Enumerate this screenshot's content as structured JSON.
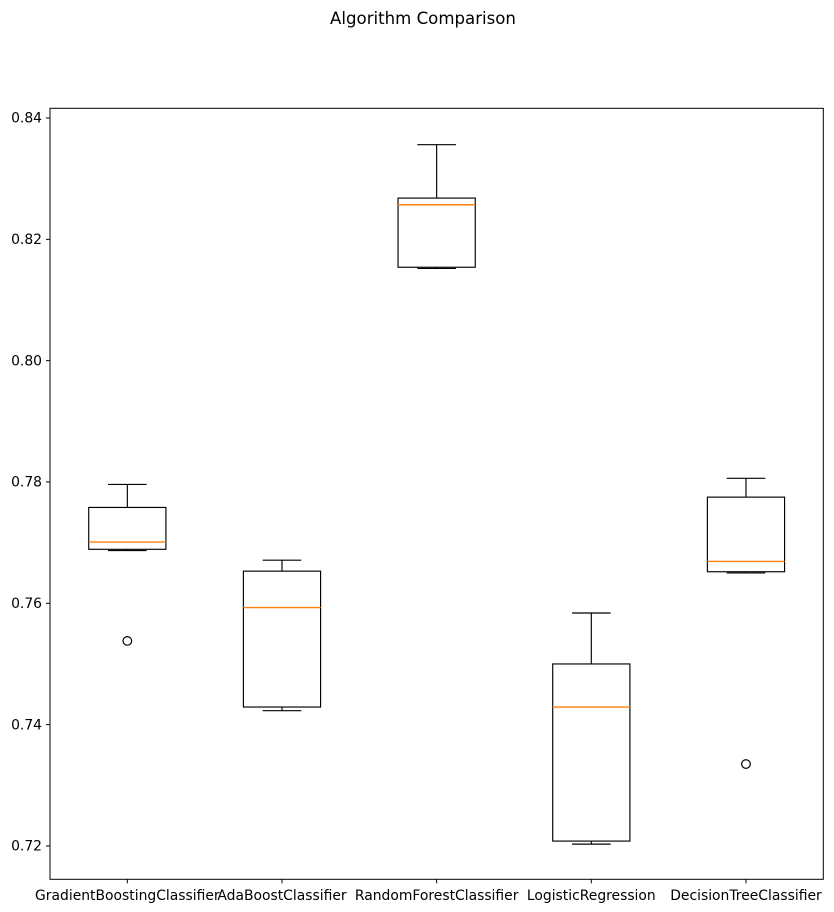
{
  "chart_data": {
    "type": "boxplot",
    "title": "Algorithm Comparison",
    "categories": [
      "GradientBoostingClassifier",
      "AdaBoostClassifier",
      "RandomForestClassifier",
      "LogisticRegression",
      "DecisionTreeClassifier"
    ],
    "series": [
      {
        "name": "GradientBoostingClassifier",
        "whisker_low": 0.7687,
        "q1": 0.7689,
        "median": 0.7701,
        "q3": 0.7758,
        "whisker_high": 0.7796,
        "outliers": [
          0.7538
        ]
      },
      {
        "name": "AdaBoostClassifier",
        "whisker_low": 0.7423,
        "q1": 0.7429,
        "median": 0.7593,
        "q3": 0.7653,
        "whisker_high": 0.7671,
        "outliers": []
      },
      {
        "name": "RandomForestClassifier",
        "whisker_low": 0.8152,
        "q1": 0.8154,
        "median": 0.8257,
        "q3": 0.8268,
        "whisker_high": 0.8356,
        "outliers": []
      },
      {
        "name": "LogisticRegression",
        "whisker_low": 0.7203,
        "q1": 0.7208,
        "median": 0.7429,
        "q3": 0.75,
        "whisker_high": 0.7584,
        "outliers": []
      },
      {
        "name": "DecisionTreeClassifier",
        "whisker_low": 0.765,
        "q1": 0.7652,
        "median": 0.7669,
        "q3": 0.7775,
        "whisker_high": 0.7806,
        "outliers": [
          0.7335
        ]
      }
    ],
    "ylim": [
      0.7145,
      0.8416
    ],
    "yticks": [
      0.72,
      0.74,
      0.76,
      0.78,
      0.8,
      0.82,
      0.84
    ],
    "ytick_format_decimals": 2,
    "xlabel": "",
    "ylabel": "",
    "grid": false,
    "legend": "none",
    "colors": {
      "box_stroke": "#000000",
      "median": "#ff7f0e",
      "outlier_stroke": "#000000",
      "text": "#000000",
      "background": "#ffffff"
    }
  }
}
